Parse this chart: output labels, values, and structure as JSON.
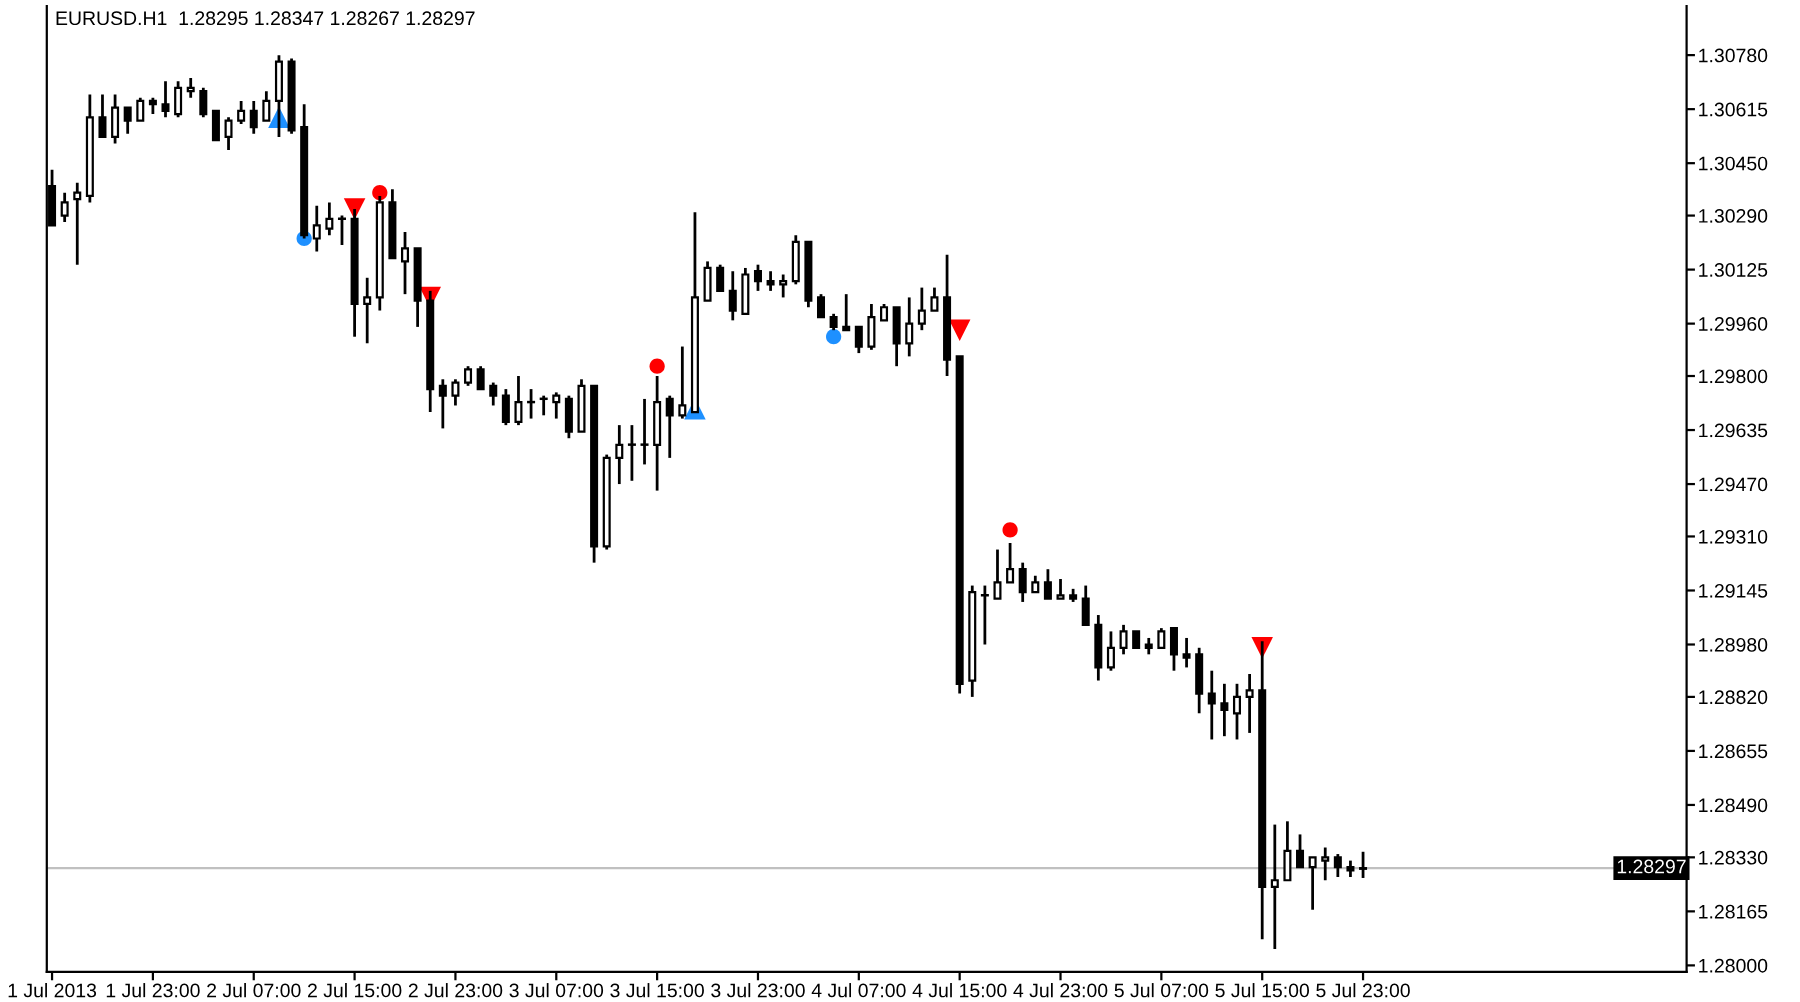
{
  "chart_data": {
    "type": "candlestick",
    "title": "EURUSD.H1  1.28295 1.28347 1.28267 1.28297",
    "x": [
      "2013-07-01T15:00",
      "2013-07-01T16:00",
      "2013-07-01T17:00",
      "2013-07-01T18:00",
      "2013-07-01T19:00",
      "2013-07-01T20:00",
      "2013-07-01T21:00",
      "2013-07-01T22:00",
      "2013-07-01T23:00",
      "2013-07-02T00:00",
      "2013-07-02T01:00",
      "2013-07-02T02:00",
      "2013-07-02T03:00",
      "2013-07-02T04:00",
      "2013-07-02T05:00",
      "2013-07-02T06:00",
      "2013-07-02T07:00",
      "2013-07-02T08:00",
      "2013-07-02T09:00",
      "2013-07-02T10:00",
      "2013-07-02T11:00",
      "2013-07-02T12:00",
      "2013-07-02T13:00",
      "2013-07-02T14:00",
      "2013-07-02T15:00",
      "2013-07-02T16:00",
      "2013-07-02T17:00",
      "2013-07-02T18:00",
      "2013-07-02T19:00",
      "2013-07-02T20:00",
      "2013-07-02T21:00",
      "2013-07-02T22:00",
      "2013-07-02T23:00",
      "2013-07-03T00:00",
      "2013-07-03T01:00",
      "2013-07-03T02:00",
      "2013-07-03T03:00",
      "2013-07-03T04:00",
      "2013-07-03T05:00",
      "2013-07-03T06:00",
      "2013-07-03T07:00",
      "2013-07-03T08:00",
      "2013-07-03T09:00",
      "2013-07-03T10:00",
      "2013-07-03T11:00",
      "2013-07-03T12:00",
      "2013-07-03T13:00",
      "2013-07-03T14:00",
      "2013-07-03T15:00",
      "2013-07-03T16:00",
      "2013-07-03T17:00",
      "2013-07-03T18:00",
      "2013-07-03T19:00",
      "2013-07-03T20:00",
      "2013-07-03T21:00",
      "2013-07-03T22:00",
      "2013-07-03T23:00",
      "2013-07-04T00:00",
      "2013-07-04T01:00",
      "2013-07-04T02:00",
      "2013-07-04T03:00",
      "2013-07-04T04:00",
      "2013-07-04T05:00",
      "2013-07-04T06:00",
      "2013-07-04T07:00",
      "2013-07-04T08:00",
      "2013-07-04T09:00",
      "2013-07-04T10:00",
      "2013-07-04T11:00",
      "2013-07-04T12:00",
      "2013-07-04T13:00",
      "2013-07-04T14:00",
      "2013-07-04T15:00",
      "2013-07-04T16:00",
      "2013-07-04T17:00",
      "2013-07-04T18:00",
      "2013-07-04T19:00",
      "2013-07-04T20:00",
      "2013-07-04T21:00",
      "2013-07-04T22:00",
      "2013-07-04T23:00",
      "2013-07-05T00:00",
      "2013-07-05T01:00",
      "2013-07-05T02:00",
      "2013-07-05T03:00",
      "2013-07-05T04:00",
      "2013-07-05T05:00",
      "2013-07-05T06:00",
      "2013-07-05T07:00",
      "2013-07-05T08:00",
      "2013-07-05T09:00",
      "2013-07-05T10:00",
      "2013-07-05T11:00",
      "2013-07-05T12:00",
      "2013-07-05T13:00",
      "2013-07-05T14:00",
      "2013-07-05T15:00",
      "2013-07-05T16:00",
      "2013-07-05T17:00",
      "2013-07-05T18:00",
      "2013-07-05T19:00",
      "2013-07-05T20:00",
      "2013-07-05T21:00",
      "2013-07-05T22:00",
      "2013-07-05T23:00"
    ],
    "ohlc": [
      [
        1.3038,
        1.3043,
        1.3026,
        1.3026
      ],
      [
        1.3029,
        1.3036,
        1.3027,
        1.3033
      ],
      [
        1.3034,
        1.3039,
        1.3014,
        1.3036
      ],
      [
        1.3035,
        1.3066,
        1.3033,
        1.3059
      ],
      [
        1.3059,
        1.3066,
        1.3053,
        1.3053
      ],
      [
        1.3053,
        1.3066,
        1.3051,
        1.3062
      ],
      [
        1.3062,
        1.3062,
        1.3054,
        1.3058
      ],
      [
        1.3058,
        1.3065,
        1.3058,
        1.3064
      ],
      [
        1.3064,
        1.3065,
        1.306,
        1.3063
      ],
      [
        1.3063,
        1.307,
        1.3059,
        1.3061
      ],
      [
        1.306,
        1.307,
        1.3059,
        1.3068
      ],
      [
        1.3067,
        1.3071,
        1.3065,
        1.3068
      ],
      [
        1.3067,
        1.3068,
        1.3059,
        1.306
      ],
      [
        1.3061,
        1.3061,
        1.3052,
        1.3052
      ],
      [
        1.3053,
        1.3059,
        1.3049,
        1.3058
      ],
      [
        1.3058,
        1.3064,
        1.3057,
        1.3061
      ],
      [
        1.3061,
        1.3064,
        1.3054,
        1.3056
      ],
      [
        1.3058,
        1.3067,
        1.3058,
        1.3064
      ],
      [
        1.3064,
        1.3078,
        1.3053,
        1.3076
      ],
      [
        1.3076,
        1.3077,
        1.3054,
        1.3055
      ],
      [
        1.3056,
        1.3063,
        1.3022,
        1.3023
      ],
      [
        1.3022,
        1.3032,
        1.3018,
        1.3026
      ],
      [
        1.3025,
        1.3033,
        1.3023,
        1.3028
      ],
      [
        1.3028,
        1.3029,
        1.302,
        1.3028
      ],
      [
        1.3028,
        1.3031,
        1.2992,
        1.3002
      ],
      [
        1.3002,
        1.301,
        1.299,
        1.3004
      ],
      [
        1.3004,
        1.3035,
        1.3,
        1.3033
      ],
      [
        1.3033,
        1.3037,
        1.3016,
        1.3016
      ],
      [
        1.3015,
        1.3024,
        1.3005,
        1.3019
      ],
      [
        1.3019,
        1.3019,
        1.2995,
        1.3003
      ],
      [
        1.3003,
        1.3006,
        1.2969,
        1.2976
      ],
      [
        1.2977,
        1.2979,
        1.2964,
        1.2974
      ],
      [
        1.2974,
        1.2979,
        1.2971,
        1.2978
      ],
      [
        1.2978,
        1.2983,
        1.2977,
        1.2982
      ],
      [
        1.2982,
        1.2983,
        1.2976,
        1.2976
      ],
      [
        1.2977,
        1.2978,
        1.2971,
        1.2974
      ],
      [
        1.2974,
        1.2976,
        1.2965,
        1.2966
      ],
      [
        1.2966,
        1.298,
        1.2965,
        1.2972
      ],
      [
        1.2972,
        1.2976,
        1.2967,
        1.2972
      ],
      [
        1.2973,
        1.2974,
        1.2968,
        1.2973
      ],
      [
        1.2972,
        1.2975,
        1.2967,
        1.2974
      ],
      [
        1.2973,
        1.2974,
        1.2961,
        1.2963
      ],
      [
        1.2963,
        1.2979,
        1.2963,
        1.2977
      ],
      [
        1.2977,
        1.2977,
        1.2923,
        1.2928
      ],
      [
        1.2928,
        1.2956,
        1.2927,
        1.2955
      ],
      [
        1.2955,
        1.2965,
        1.2947,
        1.2959
      ],
      [
        1.2959,
        1.2965,
        1.2948,
        1.2959
      ],
      [
        1.2959,
        1.2973,
        1.2953,
        1.2959
      ],
      [
        1.2959,
        1.298,
        1.2945,
        1.2972
      ],
      [
        1.2973,
        1.2974,
        1.2955,
        1.2968
      ],
      [
        1.2968,
        1.2989,
        1.2967,
        1.2971
      ],
      [
        1.2969,
        1.303,
        1.2969,
        1.3004
      ],
      [
        1.3003,
        1.3015,
        1.3003,
        1.3013
      ],
      [
        1.3013,
        1.3014,
        1.3006,
        1.3006
      ],
      [
        1.3006,
        1.3012,
        1.2997,
        1.3
      ],
      [
        1.2999,
        1.3013,
        1.2999,
        1.3011
      ],
      [
        1.3012,
        1.3014,
        1.3006,
        1.3009
      ],
      [
        1.3009,
        1.3012,
        1.3006,
        1.3008
      ],
      [
        1.3008,
        1.3011,
        1.3004,
        1.3009
      ],
      [
        1.3009,
        1.3023,
        1.3008,
        1.3021
      ],
      [
        1.3021,
        1.3021,
        1.3001,
        1.3003
      ],
      [
        1.3004,
        1.3005,
        1.2998,
        1.2998
      ],
      [
        1.2998,
        1.2999,
        1.2994,
        1.2995
      ],
      [
        1.2995,
        1.3005,
        1.2994,
        1.2994
      ],
      [
        1.2995,
        1.2995,
        1.2987,
        1.2989
      ],
      [
        1.2989,
        1.3002,
        1.2988,
        1.2998
      ],
      [
        1.2997,
        1.3002,
        1.2997,
        1.3001
      ],
      [
        1.3001,
        1.3001,
        1.2983,
        1.299
      ],
      [
        1.299,
        1.3004,
        1.2986,
        1.2996
      ],
      [
        1.2996,
        1.3007,
        1.2994,
        1.3
      ],
      [
        1.3,
        1.3007,
        1.3,
        1.3004
      ],
      [
        1.3004,
        1.3017,
        1.298,
        1.2985
      ],
      [
        1.2986,
        1.2986,
        1.2883,
        1.2886
      ],
      [
        1.2887,
        1.2916,
        1.2882,
        1.2914
      ],
      [
        1.2913,
        1.2916,
        1.2898,
        1.2913
      ],
      [
        1.2912,
        1.2927,
        1.2912,
        1.2917
      ],
      [
        1.2917,
        1.2929,
        1.2917,
        1.2921
      ],
      [
        1.2921,
        1.2923,
        1.2911,
        1.2914
      ],
      [
        1.2914,
        1.2919,
        1.2914,
        1.2917
      ],
      [
        1.2917,
        1.2921,
        1.2912,
        1.2912
      ],
      [
        1.2912,
        1.2918,
        1.2912,
        1.2913
      ],
      [
        1.2913,
        1.2915,
        1.2911,
        1.2912
      ],
      [
        1.2912,
        1.2916,
        1.2904,
        1.2904
      ],
      [
        1.2904,
        1.2907,
        1.2887,
        1.2891
      ],
      [
        1.2891,
        1.2902,
        1.289,
        1.2897
      ],
      [
        1.2897,
        1.2904,
        1.2895,
        1.2902
      ],
      [
        1.2902,
        1.2902,
        1.2897,
        1.2897
      ],
      [
        1.2898,
        1.29,
        1.2895,
        1.2897
      ],
      [
        1.2897,
        1.2903,
        1.2897,
        1.2902
      ],
      [
        1.2903,
        1.2903,
        1.289,
        1.2895
      ],
      [
        1.2895,
        1.29,
        1.2891,
        1.2894
      ],
      [
        1.2895,
        1.2897,
        1.2877,
        1.2883
      ],
      [
        1.2883,
        1.289,
        1.2869,
        1.288
      ],
      [
        1.288,
        1.2886,
        1.287,
        1.2878
      ],
      [
        1.2877,
        1.2886,
        1.2869,
        1.2882
      ],
      [
        1.2882,
        1.2889,
        1.2871,
        1.2884
      ],
      [
        1.2884,
        1.2899,
        1.2808,
        1.2824
      ],
      [
        1.2824,
        1.2843,
        1.2805,
        1.2826
      ],
      [
        1.2826,
        1.2844,
        1.2826,
        1.2835
      ],
      [
        1.2835,
        1.284,
        1.283,
        1.283
      ],
      [
        1.283,
        1.2833,
        1.2817,
        1.2833
      ],
      [
        1.2832,
        1.2836,
        1.2826,
        1.2833
      ],
      [
        1.2833,
        1.2834,
        1.2827,
        1.283
      ],
      [
        1.283,
        1.2832,
        1.2827,
        1.2829
      ],
      [
        1.28295,
        1.28347,
        1.28267,
        1.28297
      ]
    ],
    "series": [
      {
        "type": "scatter",
        "color": "#1e90ff",
        "marker": "triangle",
        "x": [
          "2013-07-02T09:00",
          "2013-07-03T18:00"
        ],
        "values": [
          1.3059,
          1.297
        ]
      },
      {
        "type": "scatter",
        "color": "#ff0000",
        "marker": "triangle_down",
        "x": [
          "2013-07-02T15:00",
          "2013-07-02T21:00",
          "2013-07-04T15:00",
          "2013-07-05T15:00"
        ],
        "values": [
          1.3031,
          1.3004,
          1.2994,
          1.2897
        ]
      },
      {
        "type": "scatter",
        "color": "#ff0000",
        "marker": "circle",
        "x": [
          "2013-07-02T17:00",
          "2013-07-03T15:00",
          "2013-07-04T19:00"
        ],
        "values": [
          1.3036,
          1.2983,
          1.2933
        ]
      },
      {
        "type": "scatter",
        "color": "#1e90ff",
        "marker": "circle",
        "x": [
          "2013-07-02T11:00",
          "2013-07-04T05:00"
        ],
        "values": [
          1.3022,
          1.2992
        ]
      }
    ],
    "ref_lines": [
      {
        "axis": "y",
        "value": 1.28297,
        "label": "1.28297",
        "color": "#c0c0c0"
      }
    ],
    "xlim": [
      "2013-07-01T14:35",
      "2013-07-07T00:40"
    ],
    "xticks": [
      {
        "value": "2013-07-01T15:00",
        "label": "1 Jul 2013"
      },
      {
        "value": "2013-07-01T23:00",
        "label": "1 Jul 23:00"
      },
      {
        "value": "2013-07-02T07:00",
        "label": "2 Jul 07:00"
      },
      {
        "value": "2013-07-02T15:00",
        "label": "2 Jul 15:00"
      },
      {
        "value": "2013-07-02T23:00",
        "label": "2 Jul 23:00"
      },
      {
        "value": "2013-07-03T07:00",
        "label": "3 Jul 07:00"
      },
      {
        "value": "2013-07-03T15:00",
        "label": "3 Jul 15:00"
      },
      {
        "value": "2013-07-03T23:00",
        "label": "3 Jul 23:00"
      },
      {
        "value": "2013-07-04T07:00",
        "label": "4 Jul 07:00"
      },
      {
        "value": "2013-07-04T15:00",
        "label": "4 Jul 15:00"
      },
      {
        "value": "2013-07-04T23:00",
        "label": "4 Jul 23:00"
      },
      {
        "value": "2013-07-05T07:00",
        "label": "5 Jul 07:00"
      },
      {
        "value": "2013-07-05T15:00",
        "label": "5 Jul 15:00"
      },
      {
        "value": "2013-07-05T23:00",
        "label": "5 Jul 23:00"
      }
    ],
    "ylim": [
      1.2798,
      1.3093
    ],
    "yticks": [
      {
        "value": 1.28,
        "label": "1.28000"
      },
      {
        "value": 1.28165,
        "label": "1.28165"
      },
      {
        "value": 1.2833,
        "label": "1.28330"
      },
      {
        "value": 1.2849,
        "label": "1.28490"
      },
      {
        "value": 1.28655,
        "label": "1.28655"
      },
      {
        "value": 1.2882,
        "label": "1.28820"
      },
      {
        "value": 1.2898,
        "label": "1.28980"
      },
      {
        "value": 1.29145,
        "label": "1.29145"
      },
      {
        "value": 1.2931,
        "label": "1.29310"
      },
      {
        "value": 1.2947,
        "label": "1.29470"
      },
      {
        "value": 1.29635,
        "label": "1.29635"
      },
      {
        "value": 1.298,
        "label": "1.29800"
      },
      {
        "value": 1.2996,
        "label": "1.29960"
      },
      {
        "value": 1.30125,
        "label": "1.30125"
      },
      {
        "value": 1.3029,
        "label": "1.30290"
      },
      {
        "value": 1.3045,
        "label": "1.30450"
      },
      {
        "value": 1.30615,
        "label": "1.30615"
      },
      {
        "value": 1.3078,
        "label": "1.30780"
      }
    ],
    "grid": false,
    "legend": false
  }
}
